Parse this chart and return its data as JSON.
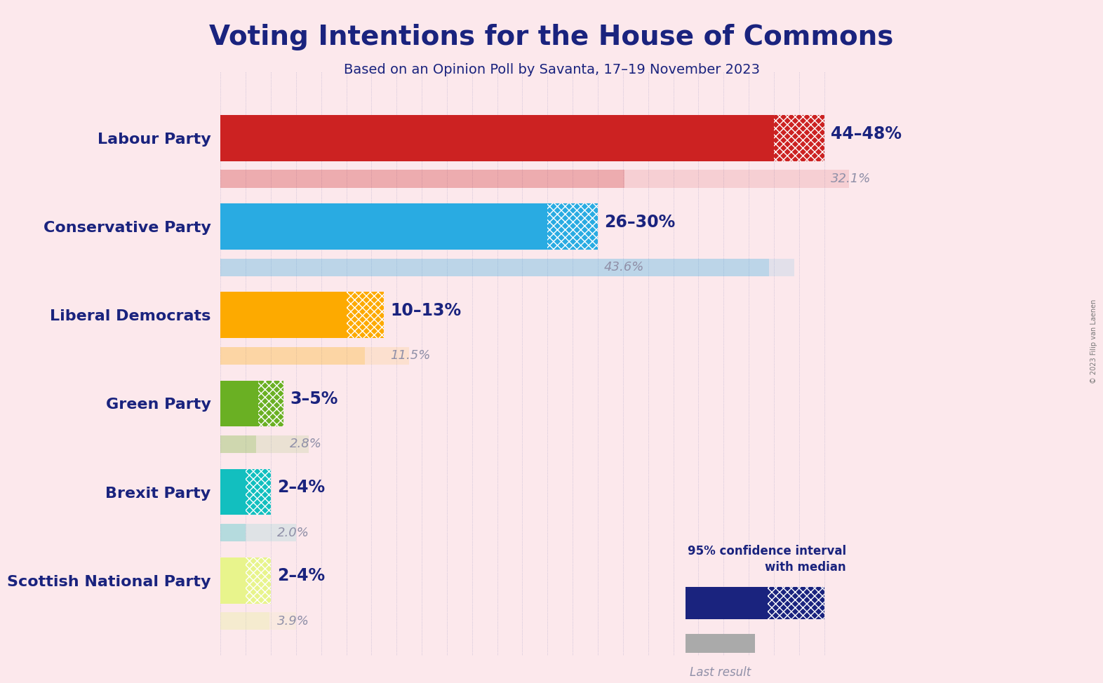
{
  "title": "Voting Intentions for the House of Commons",
  "subtitle": "Based on an Opinion Poll by Savanta, 17–19 November 2023",
  "copyright": "© 2023 Filip van Laenen",
  "background_color": "#fce8ec",
  "parties": [
    {
      "name": "Labour Party",
      "ci_low": 44,
      "ci_high": 48,
      "last_result": 32.1,
      "color": "#cc2222",
      "label_range": "44–48%",
      "label_last": "32.1%"
    },
    {
      "name": "Conservative Party",
      "ci_low": 26,
      "ci_high": 30,
      "last_result": 43.6,
      "color": "#29abe2",
      "label_range": "26–30%",
      "label_last": "43.6%"
    },
    {
      "name": "Liberal Democrats",
      "ci_low": 10,
      "ci_high": 13,
      "last_result": 11.5,
      "color": "#fdaa00",
      "label_range": "10–13%",
      "label_last": "11.5%"
    },
    {
      "name": "Green Party",
      "ci_low": 3,
      "ci_high": 5,
      "last_result": 2.8,
      "color": "#6ab023",
      "label_range": "3–5%",
      "label_last": "2.8%"
    },
    {
      "name": "Brexit Party",
      "ci_low": 2,
      "ci_high": 4,
      "last_result": 2.0,
      "color": "#12bfbf",
      "label_range": "2–4%",
      "label_last": "2.0%"
    },
    {
      "name": "Scottish National Party",
      "ci_low": 2,
      "ci_high": 4,
      "last_result": 3.9,
      "color": "#e8f48c",
      "label_range": "2–4%",
      "label_last": "3.9%"
    }
  ],
  "title_color": "#1a237e",
  "subtitle_color": "#1a237e",
  "party_label_color": "#1a237e",
  "range_label_color": "#1a237e",
  "last_result_color": "#9090a8",
  "xlim": 50,
  "title_fontsize": 28,
  "subtitle_fontsize": 14,
  "party_fontsize": 16,
  "range_fontsize": 17,
  "last_fontsize": 13
}
